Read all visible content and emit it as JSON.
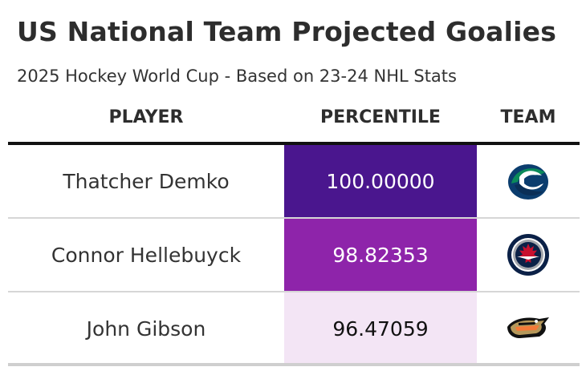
{
  "title": "US National Team Projected Goalies",
  "subtitle": "2025 Hockey World Cup - Based on 23-24 NHL Stats",
  "columns": {
    "player": "PLAYER",
    "percentile": "PERCENTILE",
    "team": "TEAM"
  },
  "colors": {
    "high": "#4a168e",
    "mid": "#8e24aa",
    "low": "#f3e5f5"
  },
  "chart_data": {
    "type": "table",
    "title": "US National Team Projected Goalies",
    "subtitle": "2025 Hockey World Cup - Based on 23-24 NHL Stats",
    "columns": [
      "PLAYER",
      "PERCENTILE",
      "TEAM"
    ],
    "rows": [
      {
        "player": "Thatcher Demko",
        "percentile": "100.00000",
        "percentile_value": 100.0,
        "team_icon": "canucks-logo-icon",
        "cell_color": "#4a168e",
        "text_color": "#ffffff"
      },
      {
        "player": "Connor Hellebuyck",
        "percentile": "98.82353",
        "percentile_value": 98.82353,
        "team_icon": "jets-logo-icon",
        "cell_color": "#8e24aa",
        "text_color": "#ffffff"
      },
      {
        "player": "John Gibson",
        "percentile": "96.47059",
        "percentile_value": 96.47059,
        "team_icon": "ducks-logo-icon",
        "cell_color": "#f3e5f5",
        "text_color": "#111111"
      }
    ]
  }
}
